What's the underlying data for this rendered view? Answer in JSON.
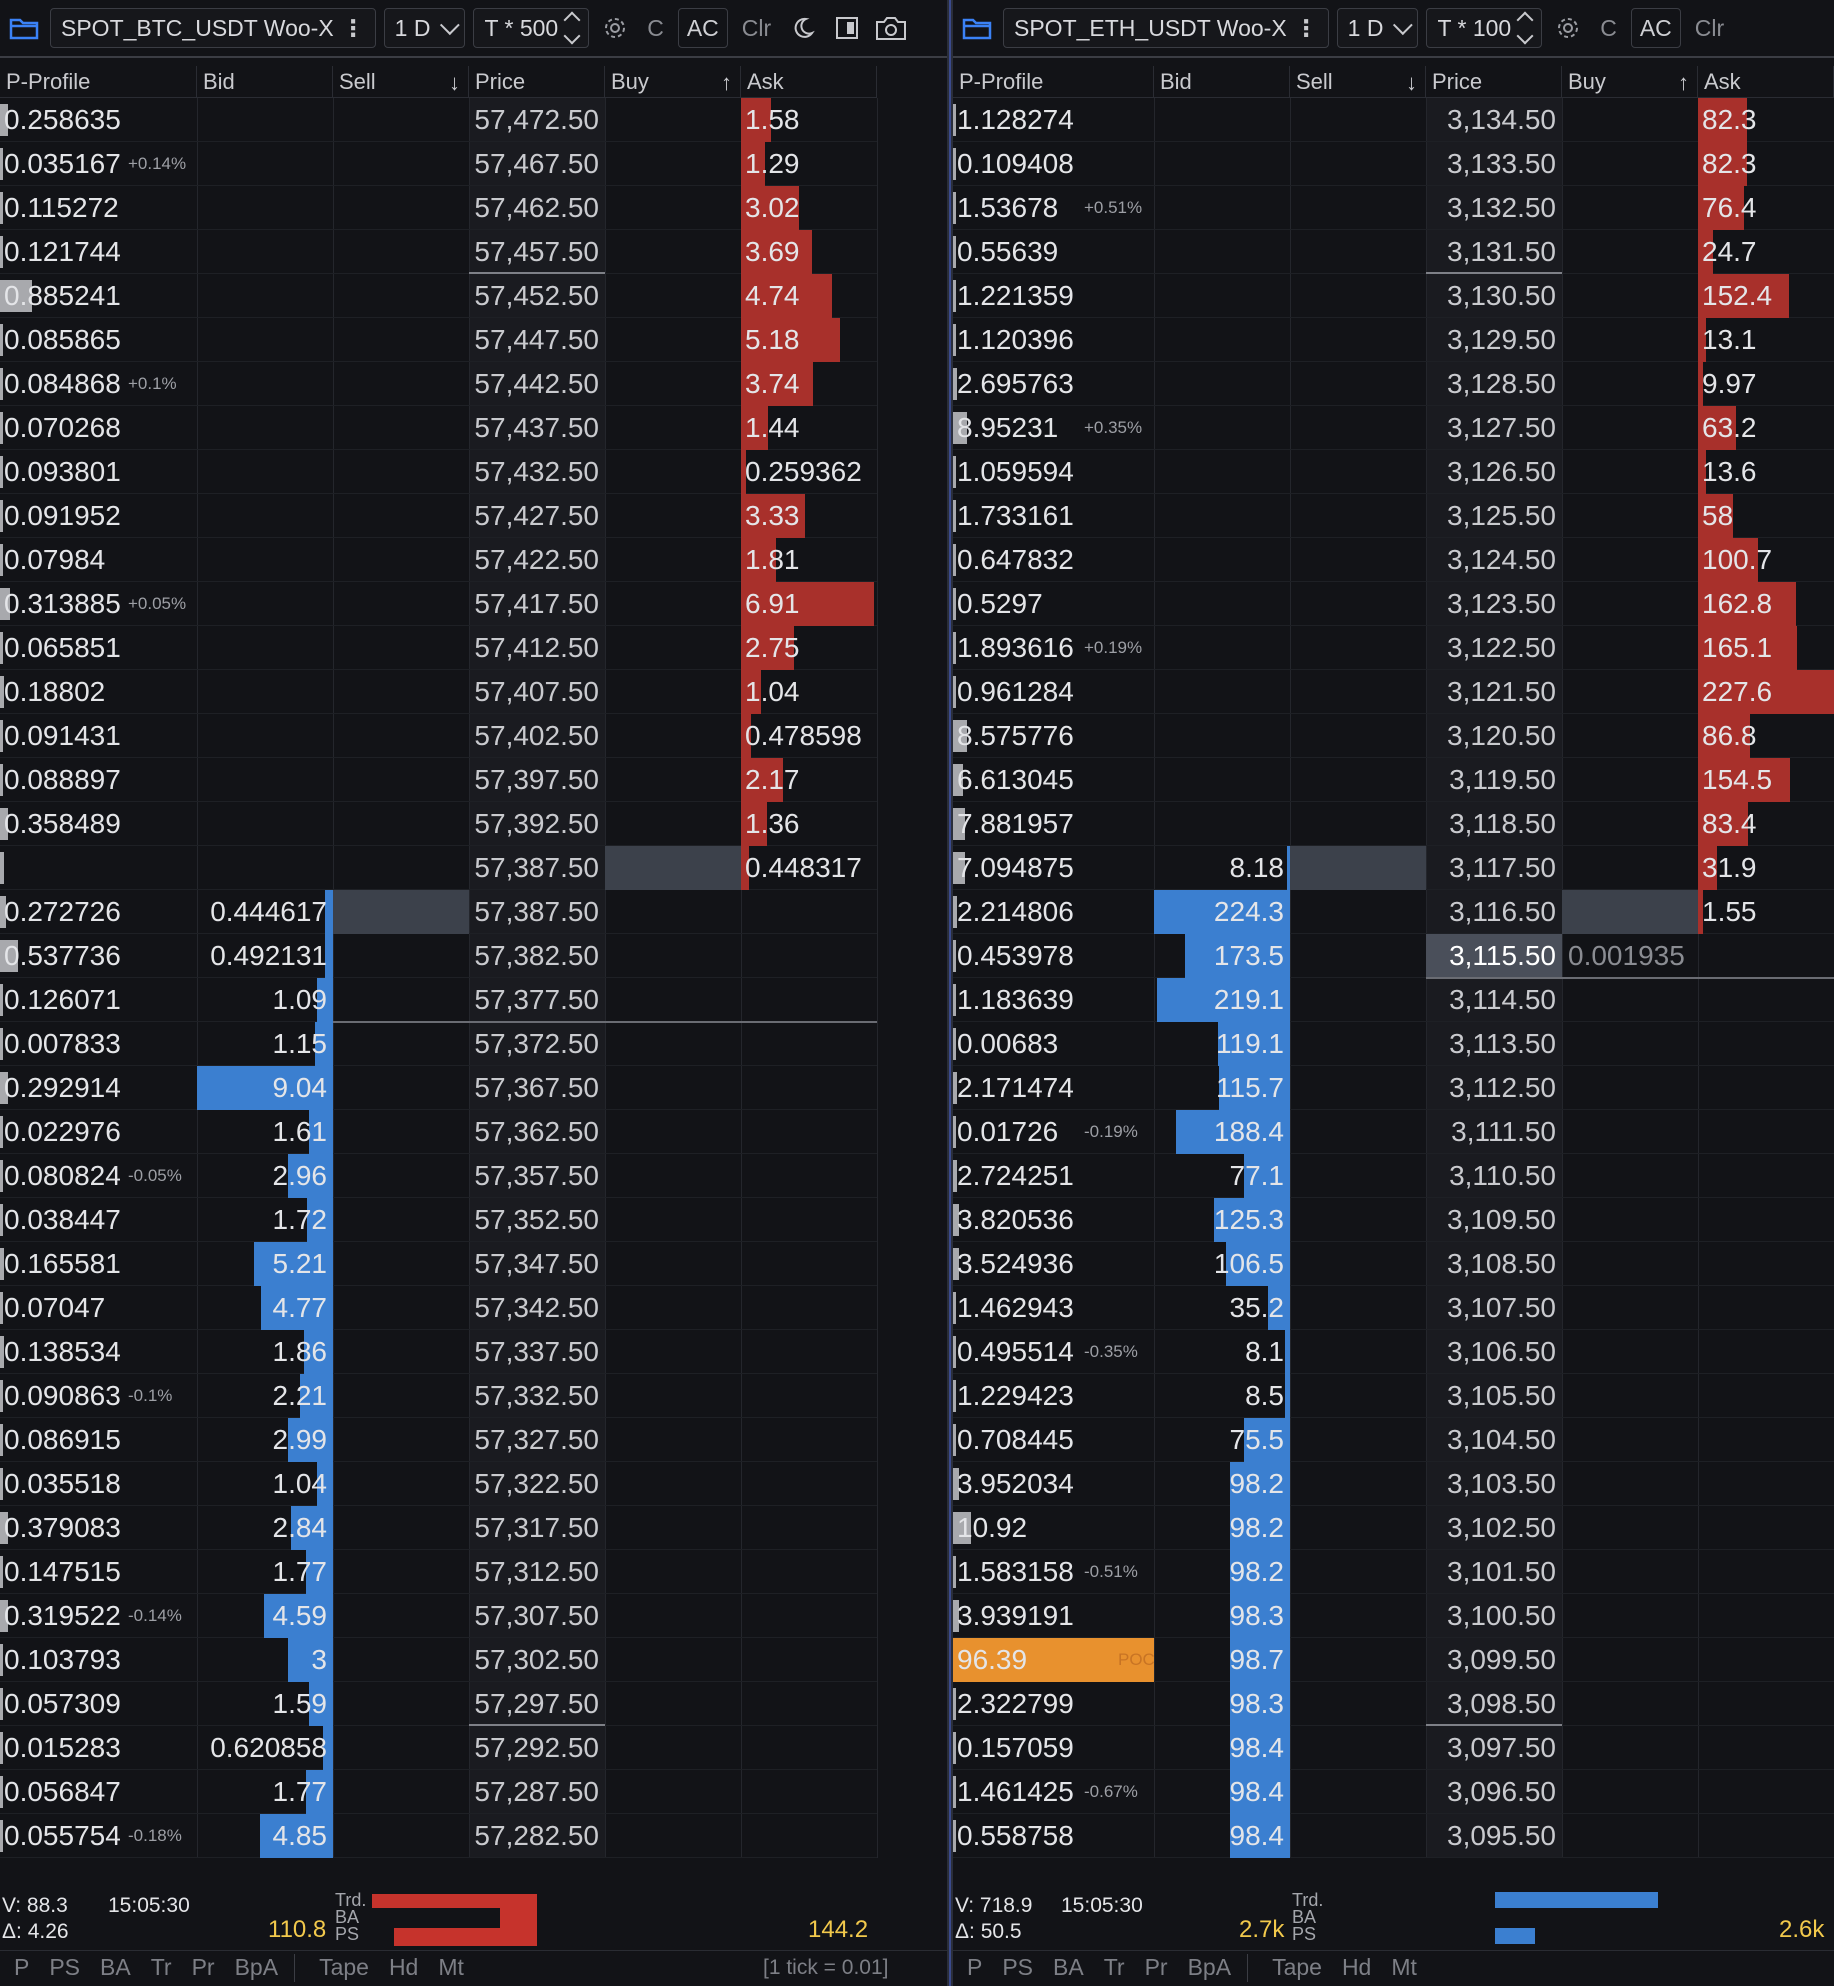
{
  "left": {
    "symbol": "SPOT_BTC_USDT Woo-X",
    "timeframe": "1 D",
    "tick_mult": "T * 500",
    "btn_c": "C",
    "btn_ac": "AC",
    "btn_clr": "Clr",
    "headers": {
      "pprofile": "P-Profile",
      "bid": "Bid",
      "sell": "Sell",
      "price": "Price",
      "buy": "Buy",
      "ask": "Ask"
    },
    "rows": [
      {
        "pp": "0.258635",
        "pct": "",
        "bid": "",
        "ask": "1.58",
        "price": "57,472.50",
        "ppbar": 0.04,
        "bidbar": 0,
        "askbar": 0.22,
        "ul": false
      },
      {
        "pp": "0.035167",
        "pct": "+0.14%",
        "bid": "",
        "ask": "1.29",
        "price": "57,467.50",
        "ppbar": 0.0,
        "bidbar": 0,
        "askbar": 0.18,
        "ul": false
      },
      {
        "pp": "0.115272",
        "pct": "",
        "bid": "",
        "ask": "3.02",
        "price": "57,462.50",
        "ppbar": 0.0,
        "bidbar": 0,
        "askbar": 0.43,
        "ul": false
      },
      {
        "pp": "0.121744",
        "pct": "",
        "bid": "",
        "ask": "3.69",
        "price": "57,457.50",
        "ppbar": 0.0,
        "bidbar": 0,
        "askbar": 0.52,
        "ul": true
      },
      {
        "pp": "0.885241",
        "pct": "",
        "bid": "",
        "ask": "4.74",
        "price": "57,452.50",
        "ppbar": 0.16,
        "bidbar": 0,
        "askbar": 0.67,
        "ul": false
      },
      {
        "pp": "0.085865",
        "pct": "",
        "bid": "",
        "ask": "5.18",
        "price": "57,447.50",
        "ppbar": 0.0,
        "bidbar": 0,
        "askbar": 0.73,
        "ul": false
      },
      {
        "pp": "0.084868",
        "pct": "+0.1%",
        "bid": "",
        "ask": "3.74",
        "price": "57,442.50",
        "ppbar": 0.0,
        "bidbar": 0,
        "askbar": 0.53,
        "ul": false
      },
      {
        "pp": "0.070268",
        "pct": "",
        "bid": "",
        "ask": "1.44",
        "price": "57,437.50",
        "ppbar": 0.0,
        "bidbar": 0,
        "askbar": 0.2,
        "ul": false
      },
      {
        "pp": "0.093801",
        "pct": "",
        "bid": "",
        "ask": "0.259362",
        "price": "57,432.50",
        "ppbar": 0.0,
        "bidbar": 0,
        "askbar": 0.04,
        "ul": false
      },
      {
        "pp": "0.091952",
        "pct": "",
        "bid": "",
        "ask": "3.33",
        "price": "57,427.50",
        "ppbar": 0.0,
        "bidbar": 0,
        "askbar": 0.47,
        "ul": false
      },
      {
        "pp": "0.07984",
        "pct": "",
        "bid": "",
        "ask": "1.81",
        "price": "57,422.50",
        "ppbar": 0.0,
        "bidbar": 0,
        "askbar": 0.26,
        "ul": false
      },
      {
        "pp": "0.313885",
        "pct": "+0.05%",
        "bid": "",
        "ask": "6.91",
        "price": "57,417.50",
        "ppbar": 0.05,
        "bidbar": 0,
        "askbar": 0.98,
        "ul": false
      },
      {
        "pp": "0.065851",
        "pct": "",
        "bid": "",
        "ask": "2.75",
        "price": "57,412.50",
        "ppbar": 0.0,
        "bidbar": 0,
        "askbar": 0.39,
        "ul": false
      },
      {
        "pp": "0.18802",
        "pct": "",
        "bid": "",
        "ask": "1.04",
        "price": "57,407.50",
        "ppbar": 0.02,
        "bidbar": 0,
        "askbar": 0.15,
        "ul": false
      },
      {
        "pp": "0.091431",
        "pct": "",
        "bid": "",
        "ask": "0.478598",
        "price": "57,402.50",
        "ppbar": 0.0,
        "bidbar": 0,
        "askbar": 0.07,
        "ul": false
      },
      {
        "pp": "0.088897",
        "pct": "",
        "bid": "",
        "ask": "2.17",
        "price": "57,397.50",
        "ppbar": 0.0,
        "bidbar": 0,
        "askbar": 0.31,
        "ul": false
      },
      {
        "pp": "0.358489",
        "pct": "",
        "bid": "",
        "ask": "1.36",
        "price": "57,392.50",
        "ppbar": 0.04,
        "bidbar": 0,
        "askbar": 0.19,
        "ul": false
      },
      {
        "pp": "",
        "pct": "",
        "bid": "",
        "ask": "0.448317",
        "price": "57,387.50",
        "ppbar": 0.02,
        "bidbar": 0,
        "askbar": 0.06,
        "ul": false,
        "hl": "buy"
      },
      {
        "pp": "0.272726",
        "pct": "",
        "bid": "0.444617",
        "ask": "",
        "price": "57,387.50",
        "ppbar": 0.03,
        "bidbar": 0.06,
        "askbar": 0,
        "ul": false,
        "hl": "sell"
      },
      {
        "pp": "0.537736",
        "pct": "",
        "bid": "0.492131",
        "ask": "",
        "price": "57,382.50",
        "ppbar": 0.09,
        "bidbar": 0.06,
        "askbar": 0,
        "ul": false
      },
      {
        "pp": "0.126071",
        "pct": "",
        "bid": "1.09",
        "ask": "",
        "price": "57,377.50",
        "ppbar": 0.0,
        "bidbar": 0.12,
        "askbar": 0,
        "ul": false,
        "midline": true
      },
      {
        "pp": "0.007833",
        "pct": "",
        "bid": "1.15",
        "ask": "",
        "price": "57,372.50",
        "ppbar": 0.0,
        "bidbar": 0.13,
        "askbar": 0,
        "ul": false
      },
      {
        "pp": "0.292914",
        "pct": "",
        "bid": "9.04",
        "ask": "",
        "price": "57,367.50",
        "ppbar": 0.04,
        "bidbar": 1.0,
        "askbar": 0,
        "ul": false
      },
      {
        "pp": "0.022976",
        "pct": "",
        "bid": "1.61",
        "ask": "",
        "price": "57,362.50",
        "ppbar": 0.0,
        "bidbar": 0.18,
        "askbar": 0,
        "ul": false
      },
      {
        "pp": "0.080824",
        "pct": "-0.05%",
        "bid": "2.96",
        "ask": "",
        "price": "57,357.50",
        "ppbar": 0.0,
        "bidbar": 0.33,
        "askbar": 0,
        "ul": false
      },
      {
        "pp": "0.038447",
        "pct": "",
        "bid": "1.72",
        "ask": "",
        "price": "57,352.50",
        "ppbar": 0.0,
        "bidbar": 0.19,
        "askbar": 0,
        "ul": false
      },
      {
        "pp": "0.165581",
        "pct": "",
        "bid": "5.21",
        "ask": "",
        "price": "57,347.50",
        "ppbar": 0.02,
        "bidbar": 0.58,
        "askbar": 0,
        "ul": false
      },
      {
        "pp": "0.07047",
        "pct": "",
        "bid": "4.77",
        "ask": "",
        "price": "57,342.50",
        "ppbar": 0.0,
        "bidbar": 0.53,
        "askbar": 0,
        "ul": false
      },
      {
        "pp": "0.138534",
        "pct": "",
        "bid": "1.86",
        "ask": "",
        "price": "57,337.50",
        "ppbar": 0.01,
        "bidbar": 0.21,
        "askbar": 0,
        "ul": false
      },
      {
        "pp": "0.090863",
        "pct": "-0.1%",
        "bid": "2.21",
        "ask": "",
        "price": "57,332.50",
        "ppbar": 0.0,
        "bidbar": 0.24,
        "askbar": 0,
        "ul": false
      },
      {
        "pp": "0.086915",
        "pct": "",
        "bid": "2.99",
        "ask": "",
        "price": "57,327.50",
        "ppbar": 0.0,
        "bidbar": 0.33,
        "askbar": 0,
        "ul": false
      },
      {
        "pp": "0.035518",
        "pct": "",
        "bid": "1.04",
        "ask": "",
        "price": "57,322.50",
        "ppbar": 0.0,
        "bidbar": 0.12,
        "askbar": 0,
        "ul": false
      },
      {
        "pp": "0.379083",
        "pct": "",
        "bid": "2.84",
        "ask": "",
        "price": "57,317.50",
        "ppbar": 0.04,
        "bidbar": 0.31,
        "askbar": 0,
        "ul": false
      },
      {
        "pp": "0.147515",
        "pct": "",
        "bid": "1.77",
        "ask": "",
        "price": "57,312.50",
        "ppbar": 0.0,
        "bidbar": 0.2,
        "askbar": 0,
        "ul": false
      },
      {
        "pp": "0.319522",
        "pct": "-0.14%",
        "bid": "4.59",
        "ask": "",
        "price": "57,307.50",
        "ppbar": 0.04,
        "bidbar": 0.51,
        "askbar": 0,
        "ul": false
      },
      {
        "pp": "0.103793",
        "pct": "",
        "bid": "3",
        "ask": "",
        "price": "57,302.50",
        "ppbar": 0.0,
        "bidbar": 0.33,
        "askbar": 0,
        "ul": false
      },
      {
        "pp": "0.057309",
        "pct": "",
        "bid": "1.59",
        "ask": "",
        "price": "57,297.50",
        "ppbar": 0.0,
        "bidbar": 0.18,
        "askbar": 0,
        "ul": true
      },
      {
        "pp": "0.015283",
        "pct": "",
        "bid": "0.620858",
        "ask": "",
        "price": "57,292.50",
        "ppbar": 0.0,
        "bidbar": 0.07,
        "askbar": 0,
        "ul": false
      },
      {
        "pp": "0.056847",
        "pct": "",
        "bid": "1.77",
        "ask": "",
        "price": "57,287.50",
        "ppbar": 0.0,
        "bidbar": 0.2,
        "askbar": 0,
        "ul": false
      },
      {
        "pp": "0.055754",
        "pct": "-0.18%",
        "bid": "4.85",
        "ask": "",
        "price": "57,282.50",
        "ppbar": 0.0,
        "bidbar": 0.54,
        "askbar": 0,
        "ul": false
      }
    ],
    "footer": {
      "v": "V: 88.3",
      "delta": "Δ: 4.26",
      "time": "15:05:30",
      "bid_total": "110.8",
      "ask_total": "144.2",
      "trd": "Trd.",
      "ba": "BA",
      "ps": "PS",
      "tick_info": "[1 tick = 0.01]"
    },
    "tabs": [
      "P",
      "PS",
      "BA",
      "Tr",
      "Pr",
      "BpA",
      "Tape",
      "Hd",
      "Mt"
    ]
  },
  "right": {
    "symbol": "SPOT_ETH_USDT Woo-X",
    "timeframe": "1 D",
    "tick_mult": "T * 100",
    "btn_c": "C",
    "btn_ac": "AC",
    "btn_clr": "Clr",
    "headers": {
      "pprofile": "P-Profile",
      "bid": "Bid",
      "sell": "Sell",
      "price": "Price",
      "buy": "Buy",
      "ask": "Ask"
    },
    "rows": [
      {
        "pp": "1.128274",
        "pct": "",
        "bid": "",
        "ask": "82.3",
        "price": "3,134.50",
        "ppbar": 0.0,
        "bidbar": 0,
        "askbar": 0.36,
        "ul": false
      },
      {
        "pp": "0.109408",
        "pct": "",
        "bid": "",
        "ask": "82.3",
        "price": "3,133.50",
        "ppbar": 0.0,
        "bidbar": 0,
        "askbar": 0.36,
        "ul": false
      },
      {
        "pp": "1.53678",
        "pct": "+0.51%",
        "bid": "",
        "ask": "76.4",
        "price": "3,132.50",
        "ppbar": 0.0,
        "bidbar": 0,
        "askbar": 0.34,
        "ul": false
      },
      {
        "pp": "0.55639",
        "pct": "",
        "bid": "",
        "ask": "24.7",
        "price": "3,131.50",
        "ppbar": 0.0,
        "bidbar": 0,
        "askbar": 0.11,
        "ul": true
      },
      {
        "pp": "1.221359",
        "pct": "",
        "bid": "",
        "ask": "152.4",
        "price": "3,130.50",
        "ppbar": 0.0,
        "bidbar": 0,
        "askbar": 0.67,
        "ul": false
      },
      {
        "pp": "1.120396",
        "pct": "",
        "bid": "",
        "ask": "13.1",
        "price": "3,129.50",
        "ppbar": 0.0,
        "bidbar": 0,
        "askbar": 0.06,
        "ul": false
      },
      {
        "pp": "2.695763",
        "pct": "",
        "bid": "",
        "ask": "9.97",
        "price": "3,128.50",
        "ppbar": 0.02,
        "bidbar": 0,
        "askbar": 0.04,
        "ul": false
      },
      {
        "pp": "8.95231",
        "pct": "+0.35%",
        "bid": "",
        "ask": "63.2",
        "price": "3,127.50",
        "ppbar": 0.07,
        "bidbar": 0,
        "askbar": 0.28,
        "ul": false
      },
      {
        "pp": "1.059594",
        "pct": "",
        "bid": "",
        "ask": "13.6",
        "price": "3,126.50",
        "ppbar": 0.0,
        "bidbar": 0,
        "askbar": 0.06,
        "ul": false
      },
      {
        "pp": "1.733161",
        "pct": "",
        "bid": "",
        "ask": "58",
        "price": "3,125.50",
        "ppbar": 0.0,
        "bidbar": 0,
        "askbar": 0.26,
        "ul": false
      },
      {
        "pp": "0.647832",
        "pct": "",
        "bid": "",
        "ask": "100.7",
        "price": "3,124.50",
        "ppbar": 0.0,
        "bidbar": 0,
        "askbar": 0.44,
        "ul": false
      },
      {
        "pp": "0.5297",
        "pct": "",
        "bid": "",
        "ask": "162.8",
        "price": "3,123.50",
        "ppbar": 0.0,
        "bidbar": 0,
        "askbar": 0.72,
        "ul": false
      },
      {
        "pp": "1.893616",
        "pct": "+0.19%",
        "bid": "",
        "ask": "165.1",
        "price": "3,122.50",
        "ppbar": 0.0,
        "bidbar": 0,
        "askbar": 0.73,
        "ul": false
      },
      {
        "pp": "0.961284",
        "pct": "",
        "bid": "",
        "ask": "227.6",
        "price": "3,121.50",
        "ppbar": 0.0,
        "bidbar": 0,
        "askbar": 1.0,
        "ul": false
      },
      {
        "pp": "8.575776",
        "pct": "",
        "bid": "",
        "ask": "86.8",
        "price": "3,120.50",
        "ppbar": 0.07,
        "bidbar": 0,
        "askbar": 0.38,
        "ul": false
      },
      {
        "pp": "6.613045",
        "pct": "",
        "bid": "",
        "ask": "154.5",
        "price": "3,119.50",
        "ppbar": 0.05,
        "bidbar": 0,
        "askbar": 0.68,
        "ul": false
      },
      {
        "pp": "7.881957",
        "pct": "",
        "bid": "",
        "ask": "83.4",
        "price": "3,118.50",
        "ppbar": 0.06,
        "bidbar": 0,
        "askbar": 0.37,
        "ul": false
      },
      {
        "pp": "7.094875",
        "pct": "",
        "bid": "8.18",
        "ask": "31.9",
        "price": "3,117.50",
        "ppbar": 0.06,
        "bidbar": 0.02,
        "askbar": 0.14,
        "ul": false,
        "hl": "sell"
      },
      {
        "pp": "2.214806",
        "pct": "",
        "bid": "224.3",
        "ask": "1.55",
        "price": "3,116.50",
        "ppbar": 0.02,
        "bidbar": 1.0,
        "askbar": 0.01,
        "ul": false,
        "hl": "buy"
      },
      {
        "pp": "0.453978",
        "pct": "",
        "bid": "173.5",
        "ask": "",
        "buy": "0.001935",
        "price": "3,115.50",
        "ppbar": 0.0,
        "bidbar": 0.77,
        "askbar": 0,
        "ul": false,
        "cur": true,
        "midline": true
      },
      {
        "pp": "1.183639",
        "pct": "",
        "bid": "219.1",
        "ask": "",
        "price": "3,114.50",
        "ppbar": 0.0,
        "bidbar": 0.98,
        "askbar": 0,
        "ul": false
      },
      {
        "pp": "0.00683",
        "pct": "",
        "bid": "119.1",
        "ask": "",
        "price": "3,113.50",
        "ppbar": 0.0,
        "bidbar": 0.53,
        "askbar": 0,
        "ul": false
      },
      {
        "pp": "2.171474",
        "pct": "",
        "bid": "115.7",
        "ask": "",
        "price": "3,112.50",
        "ppbar": 0.02,
        "bidbar": 0.52,
        "askbar": 0,
        "ul": false
      },
      {
        "pp": "0.01726",
        "pct": "-0.19%",
        "bid": "188.4",
        "ask": "",
        "price": "3,111.50",
        "ppbar": 0.0,
        "bidbar": 0.84,
        "askbar": 0,
        "ul": false
      },
      {
        "pp": "2.724251",
        "pct": "",
        "bid": "77.1",
        "ask": "",
        "price": "3,110.50",
        "ppbar": 0.02,
        "bidbar": 0.34,
        "askbar": 0,
        "ul": false
      },
      {
        "pp": "3.820536",
        "pct": "",
        "bid": "125.3",
        "ask": "",
        "price": "3,109.50",
        "ppbar": 0.03,
        "bidbar": 0.56,
        "askbar": 0,
        "ul": false
      },
      {
        "pp": "3.524936",
        "pct": "",
        "bid": "106.5",
        "ask": "",
        "price": "3,108.50",
        "ppbar": 0.03,
        "bidbar": 0.47,
        "askbar": 0,
        "ul": false
      },
      {
        "pp": "1.462943",
        "pct": "",
        "bid": "35.2",
        "ask": "",
        "price": "3,107.50",
        "ppbar": 0.0,
        "bidbar": 0.16,
        "askbar": 0,
        "ul": false
      },
      {
        "pp": "0.495514",
        "pct": "-0.35%",
        "bid": "8.1",
        "ask": "",
        "price": "3,106.50",
        "ppbar": 0.0,
        "bidbar": 0.04,
        "askbar": 0,
        "ul": false
      },
      {
        "pp": "1.229423",
        "pct": "",
        "bid": "8.5",
        "ask": "",
        "price": "3,105.50",
        "ppbar": 0.0,
        "bidbar": 0.04,
        "askbar": 0,
        "ul": false
      },
      {
        "pp": "0.708445",
        "pct": "",
        "bid": "75.5",
        "ask": "",
        "price": "3,104.50",
        "ppbar": 0.0,
        "bidbar": 0.34,
        "askbar": 0,
        "ul": false
      },
      {
        "pp": "3.952034",
        "pct": "",
        "bid": "98.2",
        "ask": "",
        "price": "3,103.50",
        "ppbar": 0.03,
        "bidbar": 0.44,
        "askbar": 0,
        "ul": false
      },
      {
        "pp": "10.92",
        "pct": "",
        "bid": "98.2",
        "ask": "",
        "price": "3,102.50",
        "ppbar": 0.09,
        "bidbar": 0.44,
        "askbar": 0,
        "ul": false
      },
      {
        "pp": "1.583158",
        "pct": "-0.51%",
        "bid": "98.2",
        "ask": "",
        "price": "3,101.50",
        "ppbar": 0.0,
        "bidbar": 0.44,
        "askbar": 0,
        "ul": false
      },
      {
        "pp": "3.939191",
        "pct": "",
        "bid": "98.3",
        "ask": "",
        "price": "3,100.50",
        "ppbar": 0.03,
        "bidbar": 0.44,
        "askbar": 0,
        "ul": false
      },
      {
        "pp": "96.39",
        "pct": "",
        "poc": "POC",
        "bid": "98.7",
        "ask": "",
        "price": "3,099.50",
        "ppbar": 0.0,
        "bidbar": 0.44,
        "askbar": 0,
        "ul": false,
        "isPoc": true
      },
      {
        "pp": "2.322799",
        "pct": "",
        "bid": "98.3",
        "ask": "",
        "price": "3,098.50",
        "ppbar": 0.0,
        "bidbar": 0.44,
        "askbar": 0,
        "ul": true
      },
      {
        "pp": "0.157059",
        "pct": "",
        "bid": "98.4",
        "ask": "",
        "price": "3,097.50",
        "ppbar": 0.0,
        "bidbar": 0.44,
        "askbar": 0,
        "ul": false
      },
      {
        "pp": "1.461425",
        "pct": "-0.67%",
        "bid": "98.4",
        "ask": "",
        "price": "3,096.50",
        "ppbar": 0.0,
        "bidbar": 0.44,
        "askbar": 0,
        "ul": false
      },
      {
        "pp": "0.558758",
        "pct": "",
        "bid": "98.4",
        "ask": "",
        "price": "3,095.50",
        "ppbar": 0.0,
        "bidbar": 0.44,
        "askbar": 0,
        "ul": false
      }
    ],
    "footer": {
      "v": "V: 718.9",
      "delta": "Δ: 50.5",
      "time": "15:05:30",
      "bid_total": "2.7k",
      "ask_total": "2.6k",
      "trd": "Trd.",
      "ba": "BA",
      "ps": "PS"
    },
    "tabs": [
      "P",
      "PS",
      "BA",
      "Tr",
      "Pr",
      "BpA",
      "Tape",
      "Hd",
      "Mt"
    ]
  },
  "colors": {
    "bid": "#3b7fd0",
    "ask": "#a8302b",
    "poc": "#e8912e",
    "total": "#f2c94c"
  },
  "icons": [
    "folder-icon",
    "gear-icon",
    "moon-icon",
    "book-icon",
    "camera-icon",
    "sort-down-icon",
    "sort-up-icon"
  ]
}
